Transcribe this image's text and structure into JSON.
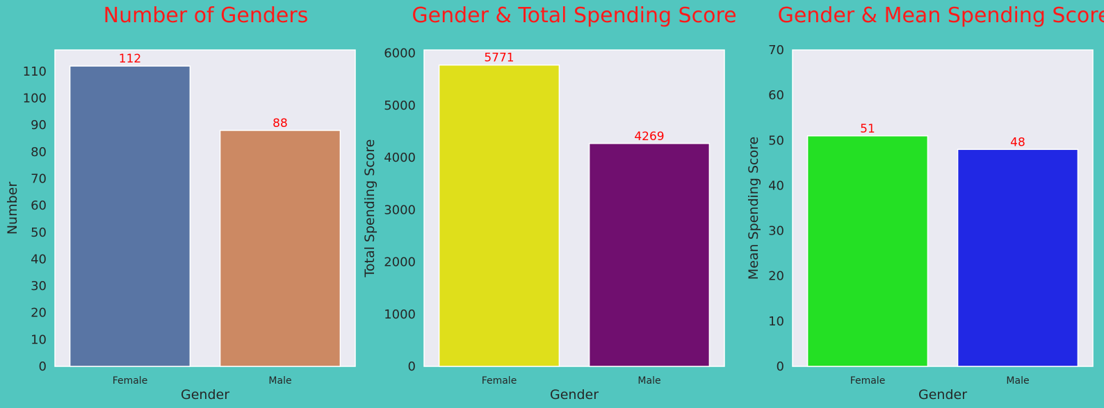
{
  "chart_data": [
    {
      "type": "bar",
      "title": "Number of Genders",
      "xlabel": "Gender",
      "ylabel": "Number",
      "categories": [
        "Female",
        "Male"
      ],
      "values": [
        112,
        88
      ],
      "data_labels": [
        "112",
        "88"
      ],
      "colors": [
        "#5975a4",
        "#cc8963"
      ],
      "ylim": [
        0,
        118
      ],
      "yticks": [
        0,
        10,
        20,
        30,
        40,
        50,
        60,
        70,
        80,
        90,
        100,
        110
      ],
      "grid": false
    },
    {
      "type": "bar",
      "title": "Gender & Total Spending Score",
      "xlabel": "Gender",
      "ylabel": "Total Spending Score",
      "categories": [
        "Female",
        "Male"
      ],
      "values": [
        5771,
        4269
      ],
      "data_labels": [
        "5771",
        "4269"
      ],
      "colors": [
        "#dfdf1b",
        "#700f6f"
      ],
      "ylim": [
        0,
        6060
      ],
      "yticks": [
        0,
        1000,
        2000,
        3000,
        4000,
        5000,
        6000
      ],
      "grid": false
    },
    {
      "type": "bar",
      "title": "Gender & Mean Spending Score",
      "xlabel": "Gender",
      "ylabel": "Mean Spending Score",
      "categories": [
        "Female",
        "Male"
      ],
      "values": [
        51,
        48
      ],
      "data_labels": [
        "51",
        "48"
      ],
      "colors": [
        "#24e024",
        "#2128e4"
      ],
      "ylim": [
        0,
        70
      ],
      "yticks": [
        0,
        10,
        20,
        30,
        40,
        50,
        60,
        70
      ],
      "grid": false
    }
  ],
  "style": {
    "figure_background": "#52c6bf",
    "plot_background": "#eaeaf2",
    "title_color": "#ff1a1a",
    "data_label_color": "#ff0000",
    "text_color": "#262626"
  }
}
